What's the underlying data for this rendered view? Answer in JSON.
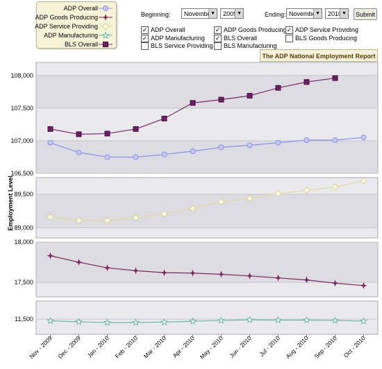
{
  "legend": [
    {
      "label": "ADP Overall",
      "color": "#8e8ee8",
      "fill": "#c8c8f4",
      "marker": "circle"
    },
    {
      "label": "ADP Goods Producing",
      "color": "#7a2a5a",
      "fill": "#7a2a5a",
      "marker": "star4"
    },
    {
      "label": "ADP Service Providing",
      "color": "#e0dca0",
      "fill": "#fbfbe8",
      "marker": "diamond"
    },
    {
      "label": "ADP Manufacturing",
      "color": "#6cb8a8",
      "fill": "#ffffff",
      "marker": "star"
    },
    {
      "label": "BLS Overall",
      "color": "#7a2a6a",
      "fill": "#6a2060",
      "marker": "square"
    }
  ],
  "controls": {
    "beginning_label": "Beginning:",
    "beginning_month": "November",
    "beginning_year": "2009",
    "ending_label": "Ending:",
    "ending_month": "November",
    "ending_year": "2010",
    "submit_label": "Submit"
  },
  "checkboxes": [
    {
      "label": "ADP Overall",
      "checked": true
    },
    {
      "label": "ADP Goods Producing",
      "checked": true
    },
    {
      "label": "ADP Service Providing",
      "checked": true
    },
    {
      "label": "ADP Manufacturing",
      "checked": true
    },
    {
      "label": "BLS Overall",
      "checked": true
    },
    {
      "label": "BLS Goods Producing",
      "checked": false
    },
    {
      "label": "BLS Service Providing",
      "checked": false
    },
    {
      "label": "BLS Manufacturing",
      "checked": false
    }
  ],
  "report_title": "The ADP National Employment Report",
  "chart_data": {
    "type": "line",
    "ylabel": "Employment Level",
    "categories": [
      "Nov - 2009",
      "Dec - 2009",
      "Jan - 2010",
      "Feb - 2010",
      "Mar - 2010",
      "Apr - 2010",
      "May - 2010",
      "Jun - 2010",
      "Jul - 2010",
      "Aug - 2010",
      "Sep - 2010",
      "Oct - 2010"
    ],
    "panels": [
      {
        "ylim": [
          106500,
          108200
        ],
        "ticks": [
          106500,
          107000,
          107500,
          108000
        ],
        "tick_labels": [
          "106,500",
          "107,000",
          "107,500",
          "108,000"
        ],
        "series": [
          {
            "name": "BLS Overall",
            "values": [
              107180,
              107100,
              107110,
              107180,
              107340,
              107580,
              107630,
              107690,
              107810,
              107900,
              107960,
              null
            ]
          },
          {
            "name": "ADP Overall",
            "values": [
              106970,
              106820,
              106750,
              106750,
              106790,
              106840,
              106900,
              106930,
              106970,
              107010,
              107010,
              107050
            ]
          }
        ]
      },
      {
        "ylim": [
          88850,
          89750
        ],
        "ticks": [
          89000,
          89500
        ],
        "tick_labels": [
          "89,000",
          "89,500"
        ],
        "series": [
          {
            "name": "ADP Service Providing",
            "values": [
              89160,
              89110,
              89110,
              89150,
              89210,
              89290,
              89390,
              89440,
              89510,
              89560,
              89610,
              89700
            ]
          }
        ]
      },
      {
        "ylim": [
          17320,
          18000
        ],
        "ticks": [
          17500,
          18000
        ],
        "tick_labels": [
          "17,500",
          "18,000"
        ],
        "series": [
          {
            "name": "ADP Goods Producing",
            "values": [
              17830,
              17750,
              17680,
              17645,
              17620,
              17615,
              17600,
              17580,
              17555,
              17530,
              17490,
              17460
            ]
          }
        ]
      },
      {
        "ylim": [
          11350,
          11680
        ],
        "ticks": [
          11500
        ],
        "tick_labels": [
          "11,500"
        ],
        "series": [
          {
            "name": "ADP Manufacturing",
            "values": [
              11484,
              11474,
              11467,
              11467,
              11471,
              11480,
              11487,
              11493,
              11491,
              11491,
              11487,
              11481
            ]
          }
        ]
      }
    ]
  }
}
